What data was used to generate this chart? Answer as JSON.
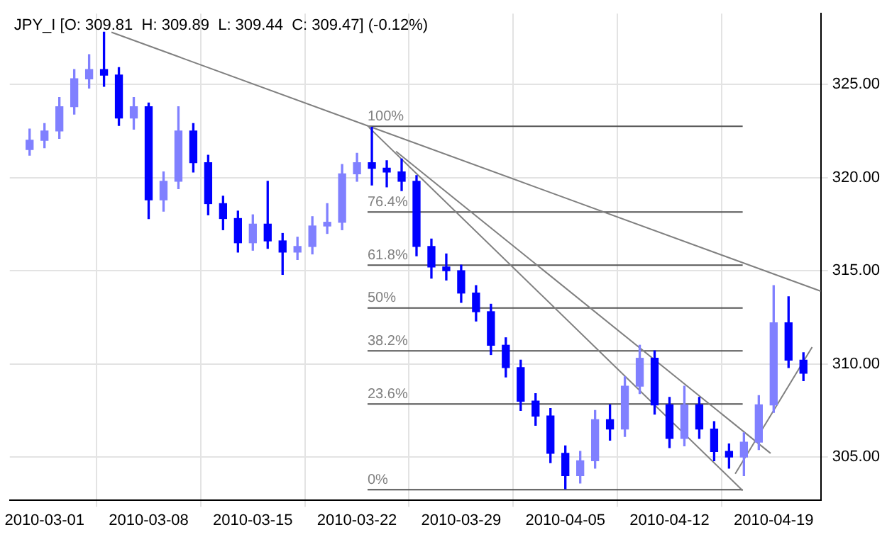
{
  "chart_data": {
    "type": "candlestick",
    "title": "JPY_I [O: 309.81  H: 309.89  L: 309.44  C: 309.47] (-0.12%)",
    "colors": [
      "#8080ff",
      "#8080ff",
      "#8080ff",
      "#8080ff",
      "#8080ff",
      "#0000ff",
      "#0000ff",
      "#8080ff",
      "#0000ff",
      "#8080ff",
      "#8080ff",
      "#0000ff",
      "#0000ff",
      "#0000ff",
      "#0000ff",
      "#8080ff",
      "#0000ff",
      "#0000ff",
      "#8080ff",
      "#8080ff",
      "#8080ff",
      "#8080ff",
      "#8080ff",
      "#0000ff",
      "#0000ff",
      "#0000ff",
      "#0000ff",
      "#0000ff",
      "#0000ff",
      "#0000ff",
      "#0000ff",
      "#0000ff",
      "#0000ff",
      "#0000ff",
      "#0000ff",
      "#0000ff",
      "#0000ff",
      "#8080ff",
      "#8080ff",
      "#0000ff",
      "#8080ff",
      "#8080ff",
      "#0000ff",
      "#0000ff",
      "#8080ff",
      "#0000ff",
      "#0000ff",
      "#0000ff",
      "#8080ff",
      "#8080ff",
      "#8080ff",
      "#0000ff",
      "#0000ff"
    ],
    "x": [
      "2010-02-28",
      "2010-03-01",
      "2010-03-02",
      "2010-03-03",
      "2010-03-04",
      "2010-03-05",
      "2010-03-06",
      "2010-03-07",
      "2010-03-08",
      "2010-03-09",
      "2010-03-10",
      "2010-03-11",
      "2010-03-12",
      "2010-03-13",
      "2010-03-14",
      "2010-03-15",
      "2010-03-16",
      "2010-03-17",
      "2010-03-18",
      "2010-03-19",
      "2010-03-20",
      "2010-03-21",
      "2010-03-22",
      "2010-03-23",
      "2010-03-24",
      "2010-03-25",
      "2010-03-26",
      "2010-03-27",
      "2010-03-28",
      "2010-03-29",
      "2010-03-30",
      "2010-03-31",
      "2010-04-01",
      "2010-04-02",
      "2010-04-03",
      "2010-04-04",
      "2010-04-05",
      "2010-04-06",
      "2010-04-07",
      "2010-04-08",
      "2010-04-09",
      "2010-04-10",
      "2010-04-11",
      "2010-04-12",
      "2010-04-13",
      "2010-04-14",
      "2010-04-15",
      "2010-04-16",
      "2010-04-17",
      "2010-04-18",
      "2010-04-19",
      "2010-04-20",
      "2010-04-21"
    ],
    "ohlc": [
      [
        321.5,
        322.6,
        321.2,
        322.0
      ],
      [
        322.0,
        322.9,
        321.6,
        322.5
      ],
      [
        322.5,
        324.3,
        322.1,
        323.8
      ],
      [
        323.8,
        325.8,
        323.4,
        325.3
      ],
      [
        325.3,
        326.6,
        324.8,
        325.8
      ],
      [
        325.8,
        327.8,
        324.9,
        325.5
      ],
      [
        325.5,
        325.9,
        322.8,
        323.2
      ],
      [
        323.2,
        324.3,
        322.6,
        323.8
      ],
      [
        323.8,
        324.0,
        317.8,
        318.8
      ],
      [
        318.8,
        320.3,
        318.2,
        319.8
      ],
      [
        319.8,
        323.8,
        319.4,
        322.5
      ],
      [
        322.5,
        322.9,
        320.3,
        320.8
      ],
      [
        320.8,
        321.2,
        318.0,
        318.6
      ],
      [
        318.6,
        319.0,
        317.2,
        317.8
      ],
      [
        317.8,
        318.2,
        316.0,
        316.5
      ],
      [
        316.5,
        318.0,
        316.1,
        317.5
      ],
      [
        317.5,
        319.8,
        316.2,
        316.6
      ],
      [
        316.6,
        317.0,
        314.8,
        316.0
      ],
      [
        316.0,
        316.8,
        315.6,
        316.3
      ],
      [
        316.3,
        317.9,
        315.9,
        317.4
      ],
      [
        317.4,
        318.6,
        317.0,
        317.6
      ],
      [
        317.6,
        320.7,
        317.2,
        320.2
      ],
      [
        320.2,
        321.3,
        319.8,
        320.8
      ],
      [
        320.8,
        322.7,
        319.6,
        320.5
      ],
      [
        320.5,
        320.9,
        319.5,
        320.3
      ],
      [
        320.3,
        321.0,
        319.3,
        319.8
      ],
      [
        319.8,
        320.1,
        315.8,
        316.3
      ],
      [
        316.3,
        316.7,
        314.6,
        315.2
      ],
      [
        315.2,
        315.9,
        314.5,
        315.0
      ],
      [
        315.0,
        315.3,
        313.3,
        313.8
      ],
      [
        313.8,
        314.2,
        312.3,
        312.8
      ],
      [
        312.8,
        313.2,
        310.5,
        311.0
      ],
      [
        311.0,
        311.4,
        309.3,
        309.8
      ],
      [
        309.8,
        310.2,
        307.5,
        308.0
      ],
      [
        308.0,
        308.4,
        306.7,
        307.2
      ],
      [
        307.2,
        307.6,
        304.7,
        305.2
      ],
      [
        305.2,
        305.6,
        303.3,
        304.0
      ],
      [
        304.0,
        305.3,
        303.6,
        304.8
      ],
      [
        304.8,
        307.5,
        304.4,
        307.0
      ],
      [
        307.0,
        307.8,
        305.9,
        306.5
      ],
      [
        306.5,
        309.3,
        306.1,
        308.8
      ],
      [
        308.8,
        311.0,
        308.4,
        310.3
      ],
      [
        310.3,
        310.7,
        307.3,
        307.8
      ],
      [
        307.8,
        308.2,
        305.5,
        306.0
      ],
      [
        306.0,
        308.8,
        305.6,
        307.8
      ],
      [
        307.8,
        308.2,
        306.0,
        306.5
      ],
      [
        306.5,
        306.9,
        304.8,
        305.3
      ],
      [
        305.3,
        305.7,
        304.4,
        305.0
      ],
      [
        305.0,
        306.3,
        304.0,
        305.8
      ],
      [
        305.8,
        308.3,
        305.4,
        307.8
      ],
      [
        307.8,
        314.2,
        307.4,
        312.2
      ],
      [
        312.2,
        313.6,
        309.8,
        310.2
      ],
      [
        310.2,
        310.6,
        309.1,
        309.5
      ]
    ],
    "series": [
      {
        "type": "line",
        "color": "#808080",
        "x": [
          "2010-03-05T12:00",
          "2010-04-22T04:00"
        ],
        "values": [
          327.8,
          313.9
        ]
      },
      {
        "type": "line",
        "color": "#808080",
        "x": [
          "2010-03-22T19:00",
          "2010-04-16T22:00"
        ],
        "values": [
          322.7,
          303.2
        ]
      },
      {
        "type": "line",
        "color": "#808080",
        "x": [
          "2010-03-24T15:00",
          "2010-04-18T19:00"
        ],
        "values": [
          321.4,
          305.2
        ]
      },
      {
        "type": "line",
        "color": "#808080",
        "x": [
          "2010-04-16T10:00",
          "2010-04-21T14:00"
        ],
        "values": [
          304.1,
          310.9
        ]
      },
      {
        "type": "line",
        "name": "100%",
        "color": "#555555",
        "x": [
          "2010-03-22T17:00",
          "2010-04-16T22:00"
        ],
        "values": [
          322.75,
          322.75
        ]
      },
      {
        "type": "line",
        "name": "76.4%",
        "color": "#555555",
        "x": [
          "2010-03-22T17:00",
          "2010-04-16T22:00"
        ],
        "values": [
          318.15,
          318.15
        ]
      },
      {
        "type": "line",
        "name": "61.8%",
        "color": "#555555",
        "x": [
          "2010-03-22T17:00",
          "2010-04-16T22:00"
        ],
        "values": [
          315.3,
          315.3
        ]
      },
      {
        "type": "line",
        "name": "50%",
        "color": "#555555",
        "x": [
          "2010-03-22T17:00",
          "2010-04-16T22:00"
        ],
        "values": [
          313.0,
          313.0
        ]
      },
      {
        "type": "line",
        "name": "38.2%",
        "color": "#555555",
        "x": [
          "2010-03-22T17:00",
          "2010-04-16T22:00"
        ],
        "values": [
          310.7,
          310.7
        ]
      },
      {
        "type": "line",
        "name": "23.6%",
        "color": "#555555",
        "x": [
          "2010-03-22T17:00",
          "2010-04-16T22:00"
        ],
        "values": [
          307.85,
          307.85
        ]
      },
      {
        "type": "line",
        "name": "0%",
        "color": "#555555",
        "x": [
          "2010-03-22T17:00",
          "2010-04-16T22:00"
        ],
        "values": [
          303.25,
          303.25
        ]
      }
    ],
    "xlim": [
      "2010-02-26T16:00",
      "2010-04-22T04:00"
    ],
    "xticks": [
      "2010-03-01",
      "2010-03-08",
      "2010-03-15",
      "2010-03-22",
      "2010-03-29",
      "2010-04-05",
      "2010-04-12",
      "2010-04-19"
    ],
    "ylim": [
      302.7,
      328.8
    ],
    "yticks": [
      {
        "value": 305,
        "label": "305.00"
      },
      {
        "value": 310,
        "label": "310.00"
      },
      {
        "value": 315,
        "label": "315.00"
      },
      {
        "value": 320,
        "label": "320.00"
      },
      {
        "value": 325,
        "label": "325.00"
      }
    ],
    "grid": true
  }
}
